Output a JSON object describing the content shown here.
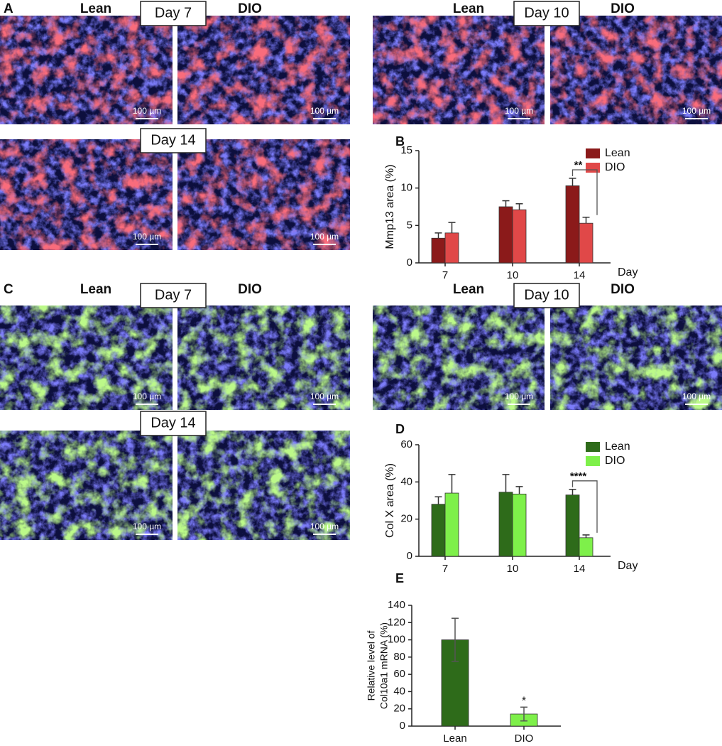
{
  "image_panels": [
    {
      "label": "A",
      "groups": [
        {
          "title": "Day 7",
          "labels": [
            "Lean",
            "DIO"
          ],
          "scale_bars": [
            "100 µm",
            "100 µm"
          ]
        },
        {
          "title": "Day 10",
          "labels": [
            "Lean",
            "DIO"
          ],
          "scale_bars": [
            "100 µm",
            "100 µm"
          ]
        },
        {
          "title": "Day 14",
          "scale_bars": [
            "100 µm",
            "100 µm"
          ]
        }
      ]
    },
    {
      "label": "C",
      "groups": [
        {
          "title": "Day 7",
          "labels": [
            "Lean",
            "DIO"
          ],
          "scale_bars": [
            "100 µm",
            "100 µm"
          ]
        },
        {
          "title": "Day 10",
          "labels": [
            "Lean",
            "DIO"
          ],
          "scale_bars": [
            "100 µm",
            "100 µm"
          ]
        },
        {
          "title": "Day 14",
          "scale_bars": [
            "100 µm",
            "100 µm"
          ]
        }
      ]
    }
  ],
  "chart_data": [
    {
      "type": "bar",
      "panel_label": "B",
      "ylabel": "Mmp13 area (%)",
      "xlabel": "Day",
      "categories": [
        "7",
        "10",
        "14"
      ],
      "series": [
        {
          "name": "Lean",
          "color": "#8b1a1a",
          "values": [
            3.3,
            7.5,
            10.3
          ],
          "errors": [
            0.7,
            0.8,
            1.0
          ]
        },
        {
          "name": "DIO",
          "color": "#e04848",
          "values": [
            4.0,
            7.1,
            5.3
          ],
          "errors": [
            1.4,
            0.8,
            0.8
          ]
        }
      ],
      "ylim": [
        0,
        15
      ],
      "yticks": [
        0,
        5,
        10,
        15
      ],
      "annotation": "**"
    },
    {
      "type": "bar",
      "panel_label": "D",
      "ylabel": "Col X area (%)",
      "xlabel": "Day",
      "categories": [
        "7",
        "10",
        "14"
      ],
      "series": [
        {
          "name": "Lean",
          "color": "#2e6b1a",
          "values": [
            28,
            34.5,
            33
          ],
          "errors": [
            4,
            9.5,
            3
          ]
        },
        {
          "name": "DIO",
          "color": "#7ef04a",
          "values": [
            34,
            33.5,
            10
          ],
          "errors": [
            10,
            4,
            1.5
          ]
        }
      ],
      "ylim": [
        0,
        60
      ],
      "yticks": [
        0,
        20,
        40,
        60
      ],
      "annotation": "****"
    },
    {
      "type": "bar",
      "panel_label": "E",
      "ylabel": [
        "Relative level of",
        "Col10a1 mRNA (%)"
      ],
      "categories": [
        "Lean",
        "DIO"
      ],
      "values": [
        100,
        14
      ],
      "errors": [
        25,
        8
      ],
      "colors": [
        "#2e6b1a",
        "#7ef04a"
      ],
      "ylim": [
        0,
        140
      ],
      "yticks": [
        0,
        20,
        40,
        60,
        80,
        100,
        120,
        140
      ],
      "annotation": "*"
    }
  ]
}
